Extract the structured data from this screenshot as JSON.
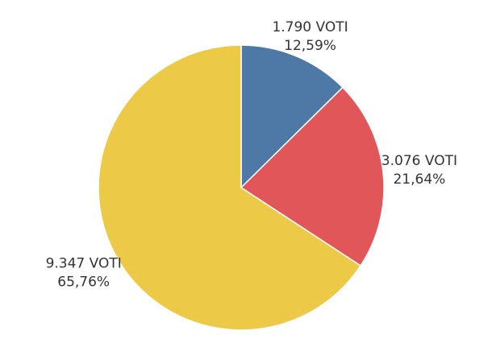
{
  "chart_data": {
    "type": "pie",
    "values": [
      1790,
      3076,
      9347
    ],
    "value_labels": [
      "1.790 VOTI",
      "3.076 VOTI",
      "9.347 VOTI"
    ],
    "percents": [
      12.59,
      21.64,
      65.76
    ],
    "percent_labels": [
      "12,59%",
      "21,64%",
      "65,76%"
    ],
    "colors": [
      "#4e79a7",
      "#e15759",
      "#edc948"
    ]
  }
}
